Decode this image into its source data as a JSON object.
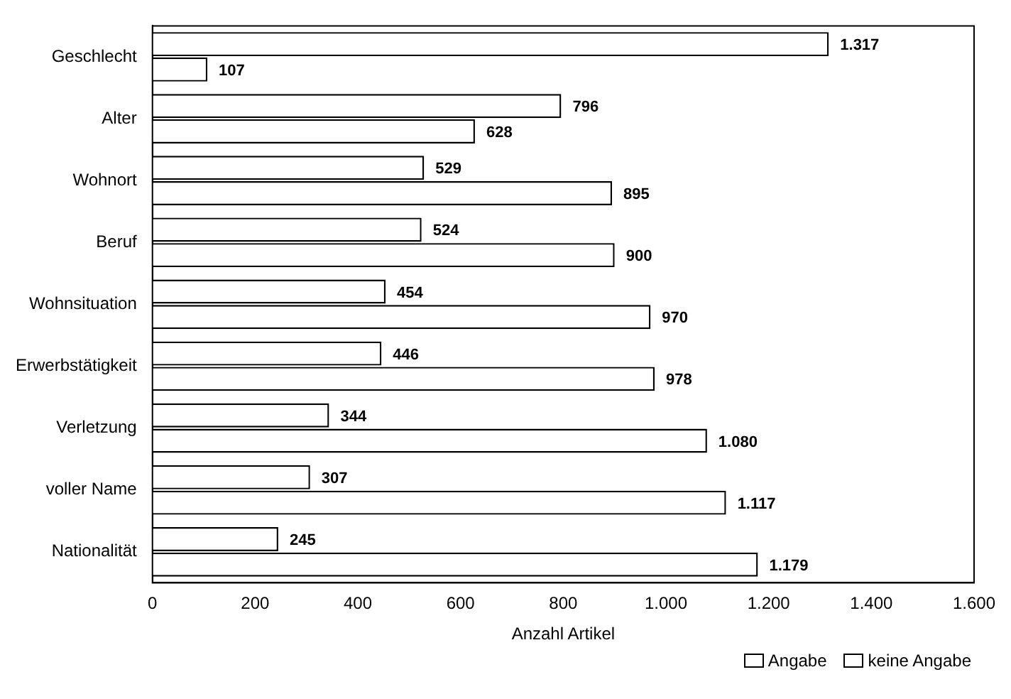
{
  "chart_data": {
    "type": "bar",
    "orientation": "horizontal",
    "xlabel": "Anzahl Artikel",
    "categories": [
      "Geschlecht",
      "Alter",
      "Wohnort",
      "Beruf",
      "Wohnsituation",
      "Erwerbstätigkeit",
      "Verletzung",
      "voller Name",
      "Nationalität"
    ],
    "series": [
      {
        "name": "Angabe",
        "color": "#ffffff",
        "values": [
          1317,
          796,
          529,
          524,
          454,
          446,
          344,
          307,
          245
        ],
        "value_labels": [
          "1.317",
          "796",
          "529",
          "524",
          "454",
          "446",
          "344",
          "307",
          "245"
        ]
      },
      {
        "name": "keine Angabe",
        "color": "#ffffff",
        "values": [
          107,
          628,
          895,
          900,
          970,
          978,
          1080,
          1117,
          1179
        ],
        "value_labels": [
          "107",
          "628",
          "895",
          "900",
          "970",
          "978",
          "1.080",
          "1.117",
          "1.179"
        ]
      }
    ],
    "xlim": [
      0,
      1600
    ],
    "xticks": [
      0,
      200,
      400,
      600,
      800,
      {
        "value": 1000,
        "label": "1.000"
      },
      {
        "value": 1200,
        "label": "1.200"
      },
      {
        "value": 1400,
        "label": "1.400"
      },
      {
        "value": 1600,
        "label": "1.600"
      }
    ],
    "grid": false,
    "legend": "bottom right"
  }
}
